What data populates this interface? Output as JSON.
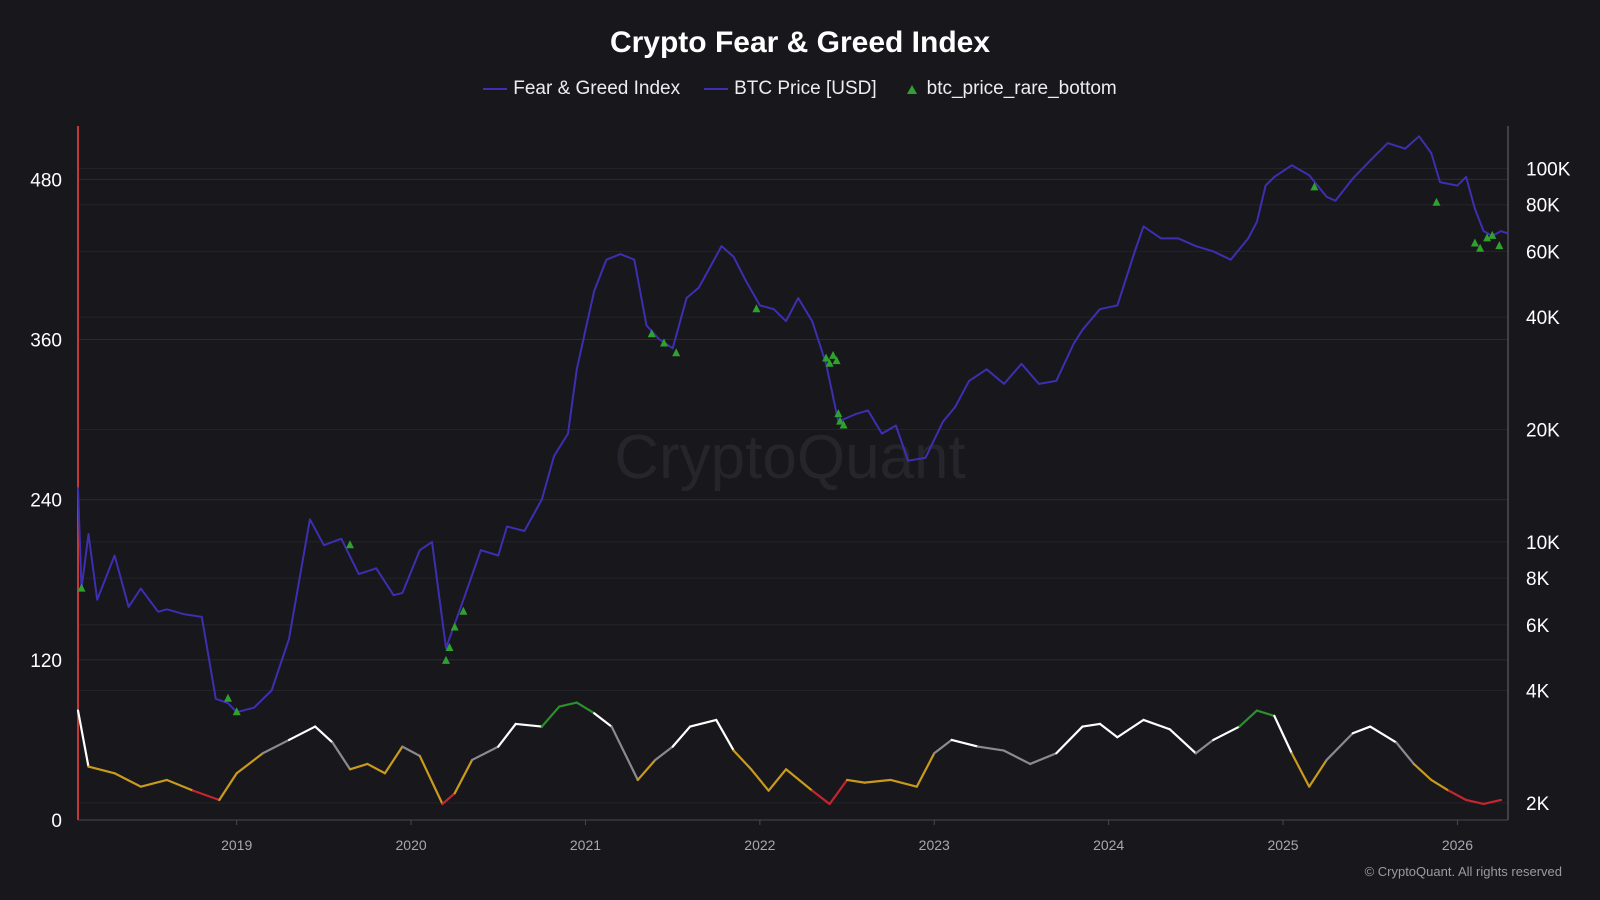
{
  "chart_data": {
    "type": "line",
    "title": "Crypto Fear & Greed Index",
    "copyright": "© CryptoQuant. All rights reserved",
    "watermark": "CryptoQuant",
    "legend_position": "top-center",
    "grid": true,
    "x_ticks": [
      "2019",
      "2020",
      "2021",
      "2022",
      "2023",
      "2024",
      "2025",
      "2026"
    ],
    "x_range": [
      2018.09,
      2026.29
    ],
    "y_left": {
      "label": "",
      "range": [
        0,
        520
      ],
      "ticks": [
        0,
        120,
        240,
        360,
        480
      ]
    },
    "y_right": {
      "label": "",
      "scale": "log",
      "range": [
        1800,
        130000
      ],
      "ticks": [
        2000,
        4000,
        6000,
        8000,
        10000,
        20000,
        40000,
        60000,
        80000,
        100000
      ],
      "tick_labels": [
        "2K",
        "4K",
        "6K",
        "8K",
        "10K",
        "20K",
        "40K",
        "60K",
        "80K",
        "100K"
      ]
    },
    "series": [
      {
        "name": "Fear & Greed Index",
        "axis": "left",
        "color": "#3d2fb0",
        "color_bands": [
          {
            "range": [
              0,
              24
            ],
            "color": "#c4262e"
          },
          {
            "range": [
              25,
              45
            ],
            "color": "#c99a1c"
          },
          {
            "range": [
              46,
              55
            ],
            "color": "#8a8a92"
          },
          {
            "range": [
              56,
              75
            ],
            "color": "#ffffff"
          },
          {
            "range": [
              76,
              100
            ],
            "color": "#2d8f2d"
          }
        ],
        "x": [
          2018.09,
          2018.15,
          2018.3,
          2018.45,
          2018.6,
          2018.75,
          2018.9,
          2019.0,
          2019.15,
          2019.3,
          2019.45,
          2019.55,
          2019.65,
          2019.75,
          2019.85,
          2019.95,
          2020.05,
          2020.18,
          2020.25,
          2020.35,
          2020.5,
          2020.6,
          2020.75,
          2020.85,
          2020.95,
          2021.05,
          2021.15,
          2021.3,
          2021.4,
          2021.5,
          2021.6,
          2021.75,
          2021.85,
          2021.95,
          2022.05,
          2022.15,
          2022.3,
          2022.4,
          2022.5,
          2022.6,
          2022.75,
          2022.9,
          2023.0,
          2023.1,
          2023.25,
          2023.4,
          2023.55,
          2023.7,
          2023.85,
          2023.95,
          2024.05,
          2024.2,
          2024.35,
          2024.5,
          2024.6,
          2024.75,
          2024.85,
          2024.95,
          2025.05,
          2025.15,
          2025.25,
          2025.4,
          2025.5,
          2025.65,
          2025.75,
          2025.85,
          2025.95,
          2026.05,
          2026.15,
          2026.25
        ],
        "values": [
          82,
          40,
          35,
          25,
          30,
          22,
          15,
          35,
          50,
          60,
          70,
          58,
          38,
          42,
          35,
          55,
          48,
          12,
          20,
          45,
          55,
          72,
          70,
          85,
          88,
          80,
          70,
          30,
          45,
          55,
          70,
          75,
          52,
          38,
          22,
          38,
          22,
          12,
          30,
          28,
          30,
          25,
          50,
          60,
          55,
          52,
          42,
          50,
          70,
          72,
          62,
          75,
          68,
          50,
          60,
          70,
          82,
          78,
          50,
          25,
          45,
          65,
          70,
          58,
          42,
          30,
          22,
          15,
          12,
          15
        ]
      },
      {
        "name": "BTC Price [USD]",
        "axis": "right",
        "color": "#3d2fb0",
        "x": [
          2018.09,
          2018.11,
          2018.15,
          2018.2,
          2018.3,
          2018.38,
          2018.45,
          2018.55,
          2018.6,
          2018.7,
          2018.8,
          2018.88,
          2018.95,
          2019.0,
          2019.1,
          2019.2,
          2019.3,
          2019.42,
          2019.5,
          2019.6,
          2019.7,
          2019.8,
          2019.9,
          2019.95,
          2020.05,
          2020.12,
          2020.2,
          2020.3,
          2020.4,
          2020.5,
          2020.55,
          2020.65,
          2020.75,
          2020.82,
          2020.9,
          2020.95,
          2021.0,
          2021.05,
          2021.12,
          2021.2,
          2021.28,
          2021.35,
          2021.42,
          2021.5,
          2021.58,
          2021.65,
          2021.72,
          2021.78,
          2021.85,
          2021.92,
          2022.0,
          2022.08,
          2022.15,
          2022.22,
          2022.3,
          2022.38,
          2022.45,
          2022.55,
          2022.62,
          2022.7,
          2022.78,
          2022.85,
          2022.95,
          2023.05,
          2023.12,
          2023.2,
          2023.3,
          2023.4,
          2023.5,
          2023.6,
          2023.7,
          2023.8,
          2023.85,
          2023.95,
          2024.05,
          2024.15,
          2024.2,
          2024.3,
          2024.4,
          2024.5,
          2024.6,
          2024.7,
          2024.8,
          2024.85,
          2024.9,
          2024.95,
          2025.05,
          2025.15,
          2025.25,
          2025.3,
          2025.4,
          2025.5,
          2025.6,
          2025.7,
          2025.78,
          2025.85,
          2025.9,
          2026.0,
          2026.05,
          2026.1,
          2026.15,
          2026.2,
          2026.25,
          2026.29
        ],
        "values": [
          14000,
          7500,
          10500,
          7000,
          9200,
          6700,
          7500,
          6500,
          6600,
          6400,
          6300,
          3800,
          3700,
          3500,
          3600,
          4000,
          5500,
          11500,
          9800,
          10200,
          8200,
          8500,
          7200,
          7300,
          9500,
          10000,
          5200,
          7000,
          9500,
          9200,
          11000,
          10700,
          13000,
          17000,
          19500,
          29000,
          37000,
          47000,
          57000,
          59000,
          57000,
          38000,
          35000,
          33000,
          45000,
          48000,
          55000,
          62000,
          58000,
          50000,
          43000,
          42000,
          39000,
          45000,
          39000,
          30000,
          21000,
          22000,
          22500,
          19500,
          20500,
          16500,
          16800,
          21000,
          23000,
          27000,
          29000,
          26500,
          30000,
          26500,
          27000,
          34000,
          37000,
          42000,
          43000,
          60000,
          70000,
          65000,
          65000,
          62000,
          60000,
          57000,
          65000,
          72000,
          90000,
          95000,
          102000,
          96000,
          84000,
          82000,
          94000,
          105000,
          117000,
          113000,
          122000,
          110000,
          92000,
          90000,
          95000,
          78000,
          68000,
          66000,
          68000,
          67000
        ],
        "bottoms_x": [
          2018.11,
          2018.95,
          2019.0,
          2019.65,
          2020.2,
          2020.22,
          2020.25,
          2020.3,
          2021.38,
          2021.45,
          2021.52,
          2021.98,
          2022.38,
          2022.4,
          2022.42,
          2022.44,
          2022.45,
          2022.46,
          2022.48,
          2025.18,
          2025.88,
          2026.1,
          2026.13,
          2026.17,
          2026.2,
          2026.24
        ],
        "bottoms_values": [
          7500,
          3800,
          3500,
          9800,
          4800,
          5200,
          5900,
          6500,
          36000,
          34000,
          32000,
          42000,
          31000,
          30000,
          31500,
          30500,
          22000,
          21000,
          20500,
          89000,
          81000,
          63000,
          61000,
          65000,
          66000,
          62000
        ]
      }
    ],
    "marker_series": {
      "name": "btc_price_rare_bottom",
      "color": "#2fa12f",
      "marker": "triangle"
    }
  }
}
